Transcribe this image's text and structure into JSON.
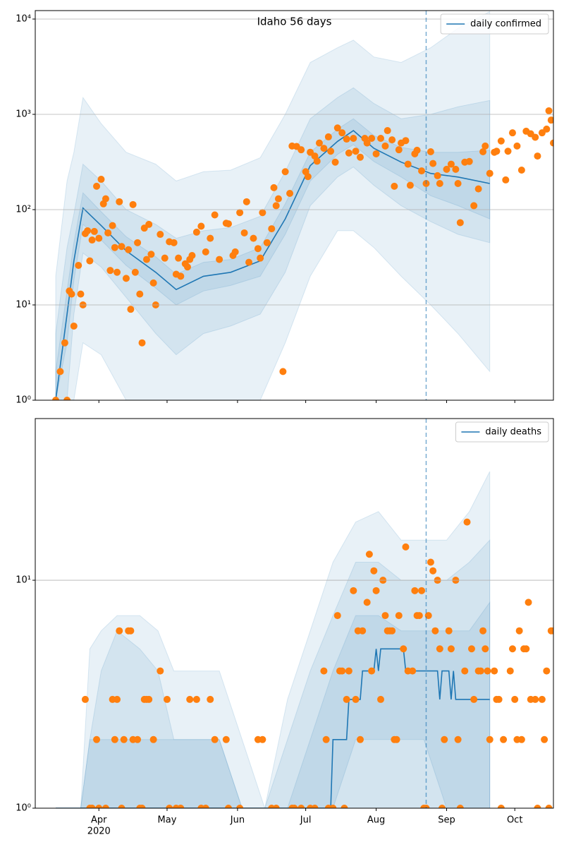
{
  "chart_data": [
    {
      "type": "line",
      "title": "Idaho 56 days",
      "log_y": true,
      "grid": true,
      "legend": "upper right",
      "forecast_start": 236,
      "xlim": [
        64,
        292
      ],
      "ylim": [
        1,
        12270
      ],
      "yticks": [
        {
          "value": 1,
          "label": "10⁰"
        },
        {
          "value": 10,
          "label": "10¹"
        },
        {
          "value": 100,
          "label": "10²"
        },
        {
          "value": 1000,
          "label": "10³"
        },
        {
          "value": 10000,
          "label": "10⁴"
        }
      ],
      "x": [
        73,
        78,
        81,
        85,
        93,
        104,
        117,
        126,
        138,
        150,
        163,
        174,
        185,
        197,
        204,
        213,
        225,
        238,
        250,
        264
      ],
      "series": [
        {
          "name": "daily confirmed",
          "color": "#1f77b4",
          "values": [
            1,
            8,
            29,
            104,
            68,
            37,
            22,
            14.5,
            20,
            22,
            29,
            80,
            290,
            520,
            675,
            440,
            315,
            240,
            220,
            188
          ]
        }
      ],
      "bands": {
        "color": "#1f77b4",
        "x": [
          73,
          78,
          81,
          85,
          93,
          104,
          117,
          126,
          138,
          150,
          163,
          174,
          185,
          197,
          204,
          213,
          225,
          238,
          250,
          264
        ],
        "levels": [
          {
            "lower": [
              1,
              1,
              1,
              4,
              3,
              1,
              1,
              1,
              1,
              1,
              1,
              4,
              20,
              60,
              60,
              40,
              20,
              10,
              5,
              2
            ],
            "upper": [
              20,
              200,
              400,
              1500,
              800,
              400,
              300,
              200,
              250,
              260,
              350,
              1000,
              3500,
              5000,
              6000,
              4000,
              3500,
              5000,
              8000,
              12000
            ]
          },
          {
            "lower": [
              1,
              1,
              8,
              35,
              25,
              12,
              5,
              3,
              5,
              6,
              8,
              22,
              110,
              220,
              280,
              180,
              110,
              75,
              55,
              45
            ],
            "upper": [
              5,
              40,
              90,
              300,
              200,
              100,
              70,
              50,
              60,
              65,
              85,
              250,
              900,
              1500,
              1900,
              1300,
              900,
              1000,
              1200,
              1400
            ]
          },
          {
            "lower": [
              1,
              4,
              18,
              70,
              48,
              26,
              15,
              10,
              14,
              16,
              20,
              55,
              200,
              380,
              480,
              320,
              220,
              140,
              110,
              80
            ],
            "upper": [
              2,
              14,
              45,
              150,
              95,
              52,
              32,
              21,
              28,
              30,
              40,
              115,
              400,
              700,
              900,
              600,
              450,
              400,
              400,
              420
            ]
          }
        ]
      },
      "points": {
        "color": "#ff7f0e",
        "x": [
          73,
          75,
          77,
          78,
          79,
          80,
          81,
          83,
          84,
          85,
          86,
          87,
          88,
          89,
          90,
          91,
          92,
          93,
          94,
          95,
          96,
          97,
          98,
          99,
          100,
          101,
          102,
          104,
          105,
          106,
          107,
          108,
          109,
          110,
          111,
          112,
          113,
          114,
          115,
          116,
          117,
          119,
          121,
          123,
          125,
          126,
          127,
          128,
          130,
          131,
          132,
          133,
          135,
          137,
          139,
          141,
          143,
          145,
          148,
          149,
          151,
          152,
          154,
          156,
          157,
          158,
          160,
          162,
          163,
          164,
          166,
          168,
          169,
          170,
          171,
          173,
          174,
          176,
          177,
          179,
          181,
          183,
          184,
          185,
          187,
          188,
          189,
          191,
          193,
          194,
          196,
          197,
          199,
          201,
          202,
          204,
          205,
          207,
          209,
          210,
          212,
          214,
          216,
          218,
          219,
          221,
          222,
          224,
          225,
          227,
          228,
          229,
          231,
          232,
          234,
          236,
          238,
          239,
          241,
          242,
          245,
          247,
          249,
          250,
          251,
          253,
          255,
          257,
          259,
          261,
          262,
          264,
          266,
          267,
          269,
          271,
          272,
          274,
          276,
          278,
          280,
          282,
          284,
          285,
          287,
          289,
          290,
          291,
          292
        ],
        "values": [
          1,
          2,
          4,
          1,
          14,
          13,
          6,
          26,
          13,
          10,
          56,
          60,
          29,
          48,
          59,
          176,
          50,
          208,
          115,
          130,
          57,
          23,
          68,
          40,
          22,
          121,
          41,
          19,
          38,
          9,
          113,
          22,
          45,
          13,
          4,
          64,
          30,
          70,
          34,
          17,
          10,
          55,
          31,
          46,
          45,
          21,
          31,
          20,
          27,
          25,
          30,
          33,
          58,
          67,
          36,
          50,
          88,
          30,
          72,
          71,
          33,
          36,
          93,
          57,
          121,
          28,
          50,
          39,
          31,
          93,
          45,
          63,
          170,
          110,
          130,
          2,
          250,
          148,
          465,
          460,
          425,
          250,
          222,
          400,
          365,
          322,
          500,
          440,
          580,
          410,
          315,
          720,
          640,
          550,
          393,
          560,
          410,
          355,
          560,
          500,
          560,
          385,
          560,
          465,
          675,
          540,
          176,
          425,
          500,
          530,
          300,
          180,
          385,
          420,
          255,
          188,
          405,
          305,
          227,
          188,
          265,
          300,
          265,
          188,
          73,
          315,
          320,
          110,
          165,
          405,
          465,
          240,
          400,
          410,
          525,
          205,
          410,
          640,
          465,
          260,
          665,
          625,
          575,
          365,
          640,
          700,
          1090,
          870,
          500
        ]
      }
    },
    {
      "type": "line",
      "log_y": true,
      "grid": true,
      "legend": "upper right",
      "forecast_start": 236,
      "xlim": [
        64,
        292
      ],
      "xticks": [
        {
          "value": 92,
          "label": "Apr"
        },
        {
          "value": 122,
          "label": "May"
        },
        {
          "value": 153,
          "label": "Jun"
        },
        {
          "value": 183,
          "label": "Jul"
        },
        {
          "value": 214,
          "label": "Aug"
        },
        {
          "value": 245,
          "label": "Sep"
        },
        {
          "value": 275,
          "label": "Oct"
        }
      ],
      "year_label": "2020",
      "ylim": [
        1,
        51.2
      ],
      "yticks": [
        {
          "value": 1,
          "label": "10⁰"
        },
        {
          "value": 10,
          "label": "10¹"
        }
      ],
      "x": [
        73,
        194,
        195,
        201,
        202,
        207,
        208,
        213,
        214,
        215,
        216,
        226,
        227,
        241,
        242,
        243,
        246,
        247,
        248,
        249,
        264
      ],
      "series": [
        {
          "name": "daily deaths",
          "color": "#1f77b4",
          "values": [
            1,
            1,
            2,
            2,
            3,
            3,
            4,
            4,
            5,
            4,
            5,
            5,
            4,
            4,
            3,
            4,
            4,
            3,
            4,
            3,
            3
          ]
        }
      ],
      "bands": {
        "color": "#1f77b4",
        "x": [
          84,
          88,
          93,
          100,
          110,
          118,
          125,
          135,
          145,
          155,
          165,
          175,
          185,
          195,
          205,
          215,
          225,
          235,
          245,
          255,
          264
        ],
        "levels": [
          {
            "lower": [
              1,
              1,
              1,
              1,
              1,
              1,
              1,
              1,
              1,
              1,
              1,
              1,
              1,
              1,
              1,
              1,
              1,
              1,
              1,
              1,
              1
            ],
            "upper": [
              1,
              5,
              6,
              7,
              7,
              6,
              4,
              4,
              4,
              2,
              1,
              3,
              6,
              12,
              18,
              20,
              15,
              15,
              15,
              20,
              30
            ]
          },
          {
            "lower": [
              1,
              1,
              1,
              1,
              1,
              1,
              1,
              1,
              1,
              1,
              1,
              1,
              1,
              1,
              1,
              1,
              1,
              1,
              1,
              1,
              1
            ],
            "upper": [
              1,
              2,
              4,
              6,
              5,
              4,
              2,
              2,
              2,
              1,
              1,
              2,
              4,
              7,
              12,
              12,
              10,
              10,
              10,
              12,
              15
            ]
          },
          {
            "lower": [
              1,
              1,
              1,
              1,
              1,
              1,
              1,
              1,
              1,
              1,
              1,
              1,
              1,
              1,
              2,
              2,
              2,
              2,
              1,
              1,
              1
            ],
            "upper": [
              1,
              2,
              2,
              2,
              2,
              2,
              2,
              2,
              2,
              1,
              1,
              1,
              2,
              4,
              7,
              7,
              6,
              6,
              6,
              6,
              8
            ]
          }
        ]
      },
      "points": {
        "color": "#ff7f0e",
        "x": [
          86,
          88,
          89,
          91,
          92,
          95,
          98,
          99,
          100,
          101,
          102,
          103,
          105,
          106,
          107,
          109,
          110,
          111,
          112,
          113,
          114,
          116,
          119,
          122,
          123,
          126,
          128,
          132,
          135,
          137,
          139,
          141,
          143,
          148,
          149,
          154,
          162,
          164,
          168,
          170,
          177,
          178,
          181,
          185,
          187,
          191,
          192,
          193,
          195,
          197,
          198,
          199,
          200,
          201,
          202,
          204,
          205,
          206,
          207,
          208,
          210,
          211,
          212,
          213,
          214,
          216,
          217,
          218,
          219,
          220,
          221,
          222,
          223,
          224,
          226,
          227,
          228,
          230,
          231,
          232,
          233,
          234,
          235,
          236,
          237,
          238,
          239,
          240,
          241,
          242,
          243,
          244,
          246,
          247,
          249,
          250,
          251,
          253,
          254,
          256,
          257,
          259,
          260,
          261,
          262,
          263,
          264,
          266,
          267,
          268,
          269,
          270,
          273,
          274,
          275,
          276,
          277,
          278,
          279,
          280,
          281,
          282,
          284,
          285,
          287,
          288,
          289,
          290,
          291,
          292
        ],
        "values": [
          3,
          1,
          1,
          2,
          1,
          1,
          3,
          2,
          3,
          6,
          1,
          2,
          6,
          6,
          2,
          2,
          1,
          1,
          3,
          3,
          3,
          2,
          4,
          3,
          1,
          1,
          1,
          3,
          3,
          1,
          1,
          3,
          2,
          2,
          1,
          1,
          2,
          2,
          1,
          1,
          1,
          1,
          1,
          1,
          1,
          4,
          2,
          1,
          1,
          7,
          4,
          4,
          1,
          3,
          4,
          9,
          3,
          6,
          2,
          6,
          8,
          13,
          4,
          11,
          9,
          3,
          10,
          7,
          6,
          6,
          6,
          2,
          2,
          7,
          5,
          14,
          4,
          4,
          9,
          7,
          7,
          9,
          1,
          1,
          7,
          12,
          11,
          6,
          10,
          5,
          1,
          2,
          6,
          5,
          10,
          2,
          1,
          4,
          18,
          5,
          3,
          4,
          4,
          6,
          5,
          4,
          2,
          4,
          3,
          3,
          1,
          2,
          4,
          5,
          3,
          2,
          6,
          2,
          5,
          5,
          8,
          3,
          3,
          1,
          3,
          2,
          4,
          1,
          6,
          6
        ]
      }
    }
  ]
}
